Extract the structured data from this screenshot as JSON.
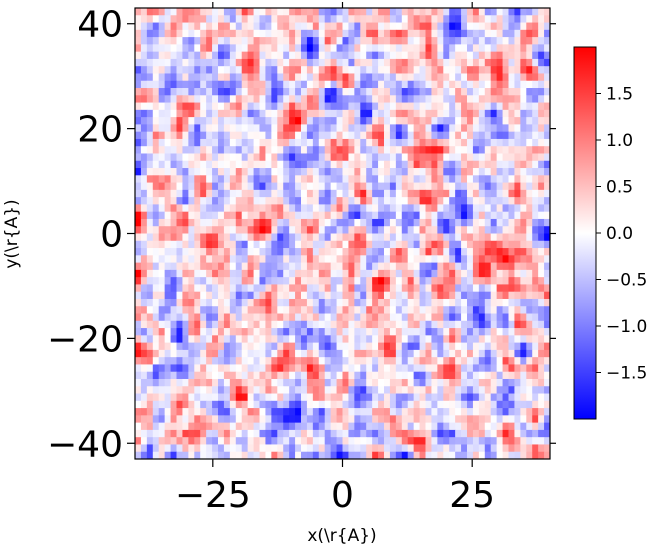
{
  "chart_data": {
    "type": "heatmap",
    "xlabel": "x(\\r{A})",
    "ylabel": "y(\\r{A})",
    "xlim": [
      -40,
      40
    ],
    "ylim": [
      -43,
      43
    ],
    "x_ticks": [
      -25,
      0,
      25
    ],
    "x_tick_labels": [
      "−25",
      "0",
      "25"
    ],
    "y_ticks": [
      40,
      20,
      0,
      -20,
      -40
    ],
    "y_tick_labels": [
      "40",
      "20",
      "0",
      "−20",
      "−40"
    ],
    "colormap": "bwr",
    "colormap_colors": [
      "#0000ff",
      "#ffffff",
      "#ff0000"
    ],
    "color_range": [
      -2.0,
      2.0
    ],
    "colorbar_ticks": [
      1.5,
      1.0,
      0.5,
      0.0,
      -0.5,
      -1.0,
      -1.5
    ],
    "colorbar_tick_labels": [
      "1.5",
      "1.0",
      "0.5",
      "0.0",
      "−0.5",
      "−1.0",
      "−1.5"
    ],
    "grid_shape": [
      62,
      70
    ],
    "notes": "Noisy random field; values span roughly -2 to 2 with warmer (red) patches near the left-center and bottom-right, cooler (blue) patches along the left edge and lower-left."
  }
}
